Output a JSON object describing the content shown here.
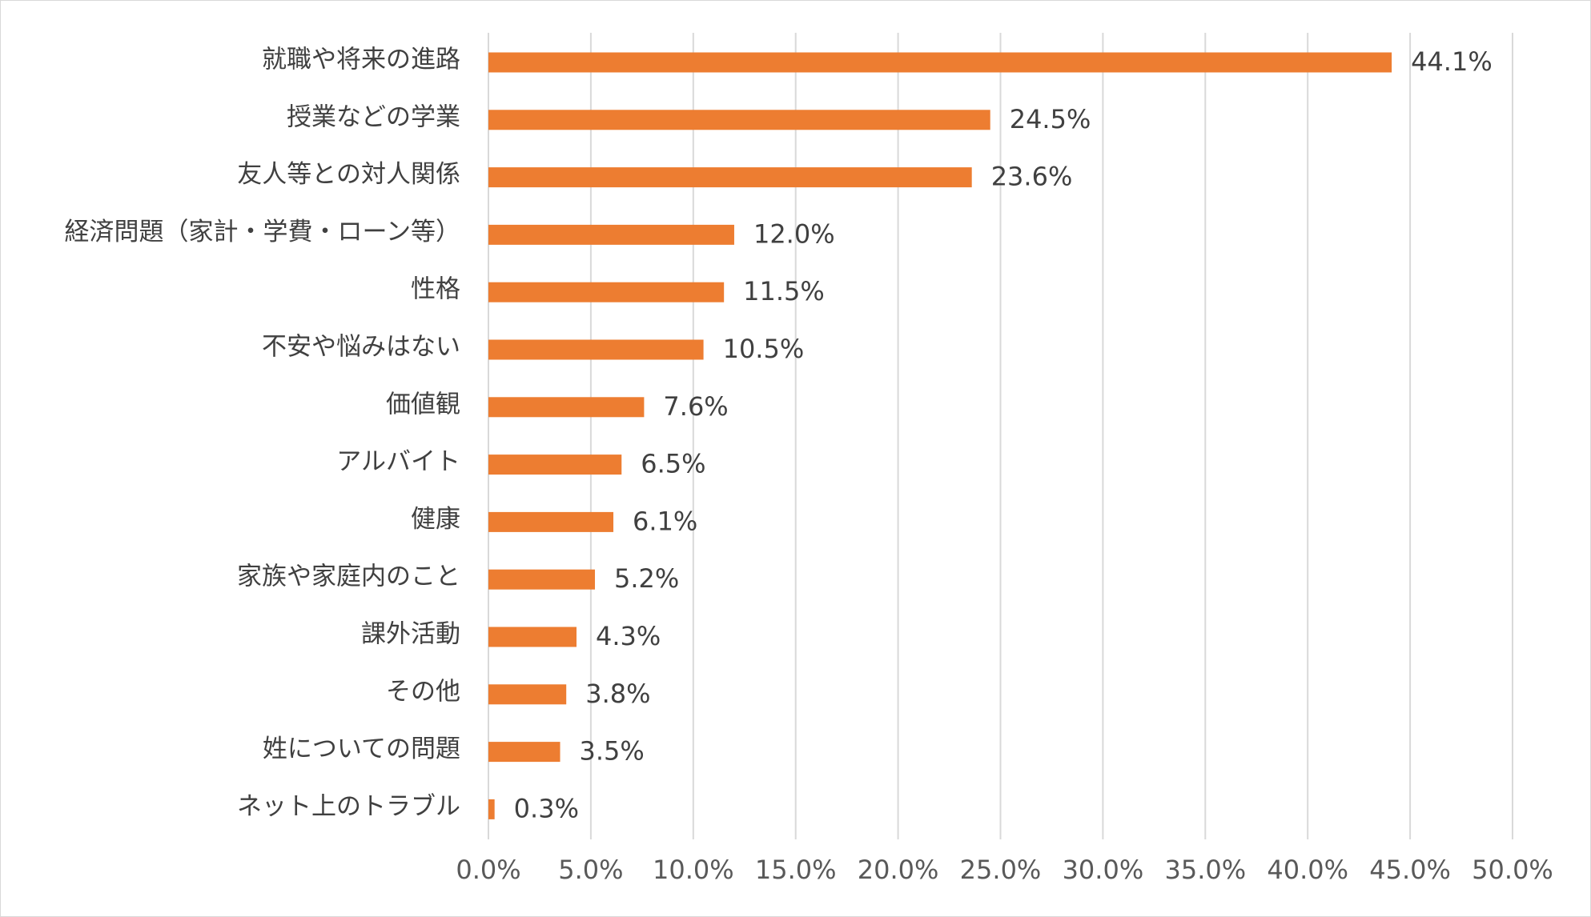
{
  "chart_data": {
    "type": "bar",
    "orientation": "horizontal",
    "title": "",
    "xlabel": "",
    "ylabel": "",
    "xlim": [
      0,
      50
    ],
    "grid": true,
    "legend": "none",
    "categories": [
      "就職や将来の進路",
      "授業などの学業",
      "友人等との対人関係",
      "経済問題（家計・学費・ローン等）",
      "性格",
      "不安や悩みはない",
      "価値観",
      "アルバイト",
      "健康",
      "家族や家庭内のこと",
      "課外活動",
      "その他",
      "姓についての問題",
      "ネット上のトラブル"
    ],
    "values": [
      44.1,
      24.5,
      23.6,
      12.0,
      11.5,
      10.5,
      7.6,
      6.5,
      6.1,
      5.2,
      4.3,
      3.8,
      3.5,
      0.3
    ],
    "value_labels": [
      "44.1%",
      "24.5%",
      "23.6%",
      "12.0%",
      "11.5%",
      "10.5%",
      "7.6%",
      "6.5%",
      "6.1%",
      "5.2%",
      "4.3%",
      "3.8%",
      "3.5%",
      "0.3%"
    ],
    "tick_labels": [
      "0.0%",
      "5.0%",
      "10.0%",
      "15.0%",
      "20.0%",
      "25.0%",
      "30.0%",
      "35.0%",
      "40.0%",
      "45.0%",
      "50.0%"
    ],
    "ticks": [
      0,
      5,
      10,
      15,
      20,
      25,
      30,
      35,
      40,
      45,
      50
    ],
    "bar_color": "#ED7D31",
    "grid_color": "#D9D9D9",
    "text_color": "#404040"
  }
}
